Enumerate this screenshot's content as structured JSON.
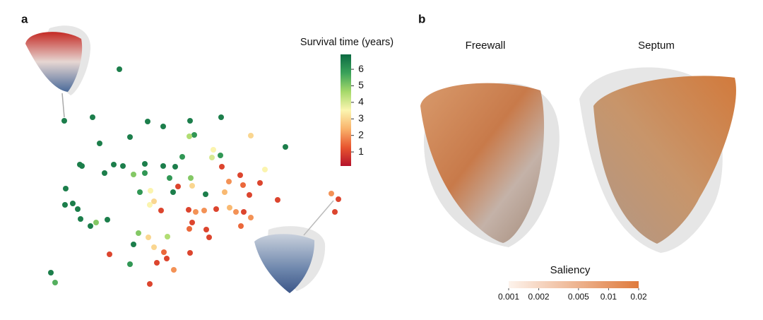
{
  "chart_data": [
    {
      "type": "scatter",
      "panel": "a",
      "xlim": [
        0,
        46
      ],
      "ylim": [
        0,
        32
      ],
      "x": [
        12.9,
        5.1,
        9.1,
        16.9,
        19.1,
        22.9,
        27.3,
        23.5,
        22.8,
        10.1,
        14.4,
        36.4,
        26.2,
        27.2,
        26.0,
        21.8,
        31.5,
        7.3,
        7.6,
        12.1,
        13.4,
        16.5,
        19.1,
        20.8,
        10.8,
        14.9,
        16.5,
        20.0,
        27.4,
        30.0,
        28.4,
        30.4,
        32.8,
        33.5,
        21.2,
        23.2,
        23.0,
        5.3,
        15.8,
        17.3,
        20.5,
        25.1,
        27.8,
        31.3,
        42.9,
        43.9,
        43.4,
        35.3,
        5.2,
        6.3,
        7.0,
        7.4,
        9.6,
        8.8,
        11.2,
        17.8,
        17.2,
        18.8,
        22.7,
        23.7,
        24.9,
        26.6,
        28.5,
        29.4,
        30.5,
        31.5,
        30.1,
        23.2,
        22.8,
        25.2,
        25.6,
        15.6,
        17.0,
        19.7,
        14.9,
        17.8,
        19.2,
        19.6,
        11.5,
        14.4,
        18.2,
        22.9,
        20.6,
        17.2,
        3.2,
        3.8
      ],
      "y": [
        31.2,
        23.9,
        24.4,
        23.8,
        23.1,
        23.9,
        24.4,
        21.9,
        21.7,
        20.7,
        21.6,
        20.2,
        19.8,
        19.0,
        18.7,
        18.8,
        21.8,
        17.7,
        17.5,
        17.7,
        17.5,
        17.8,
        17.5,
        17.4,
        16.5,
        16.3,
        16.5,
        15.8,
        17.4,
        16.2,
        15.3,
        14.8,
        15.1,
        17.0,
        14.6,
        14.7,
        15.8,
        14.3,
        13.8,
        14.0,
        13.8,
        13.5,
        13.8,
        13.4,
        13.6,
        12.8,
        11.0,
        12.7,
        12.0,
        12.2,
        11.4,
        10.0,
        9.5,
        9.0,
        9.9,
        12.5,
        12.0,
        11.2,
        11.3,
        11.0,
        11.2,
        11.4,
        11.6,
        11.0,
        11.0,
        10.2,
        9.0,
        9.5,
        8.6,
        8.5,
        7.4,
        8.0,
        7.4,
        7.5,
        6.4,
        6.0,
        5.3,
        4.4,
        5.0,
        3.6,
        3.8,
        5.2,
        2.8,
        0.8,
        2.4,
        1.0
      ],
      "color_values": [
        6.5,
        6.5,
        6.5,
        6.5,
        6.5,
        6.5,
        6.5,
        6,
        4.5,
        6.5,
        6.5,
        6.5,
        3.5,
        6,
        4,
        6,
        3,
        6.5,
        6.5,
        6.5,
        6.5,
        6.5,
        6.5,
        6.5,
        6.5,
        5,
        6,
        6,
        1,
        1,
        2,
        1.5,
        1,
        3.5,
        1,
        3,
        5,
        6.5,
        6,
        3.5,
        6.5,
        6.5,
        2.5,
        1,
        2,
        1,
        1,
        1,
        6.5,
        6.5,
        6.5,
        6.5,
        5,
        6.5,
        6.5,
        3,
        3.5,
        1,
        1,
        2,
        2,
        1,
        2.5,
        2,
        1,
        2,
        1.5,
        1,
        1.5,
        1,
        1,
        5,
        3,
        4.5,
        6.5,
        3,
        1.5,
        1,
        1,
        6,
        1,
        1,
        2,
        1,
        6.5,
        5.5
      ],
      "colorbar": {
        "title": "Survival time (years)",
        "lim": [
          0.15,
          6.9
        ],
        "ticks": [
          1,
          2,
          3,
          4,
          5,
          6
        ],
        "colors": [
          "#b5122b",
          "#e8552f",
          "#f9b36b",
          "#fbf5b0",
          "#a6d96a",
          "#3aa25a",
          "#0b6a42"
        ]
      }
    },
    {
      "type": "colorbar",
      "panel": "b",
      "labels": [
        "Freewall",
        "Septum"
      ],
      "title": "Saliency",
      "log_scale": true,
      "lim": [
        0.001,
        0.02
      ],
      "ticks": [
        0.001,
        0.002,
        0.005,
        0.01,
        0.02
      ],
      "colors": [
        "#fdf3ec",
        "#df7a3c"
      ]
    }
  ]
}
